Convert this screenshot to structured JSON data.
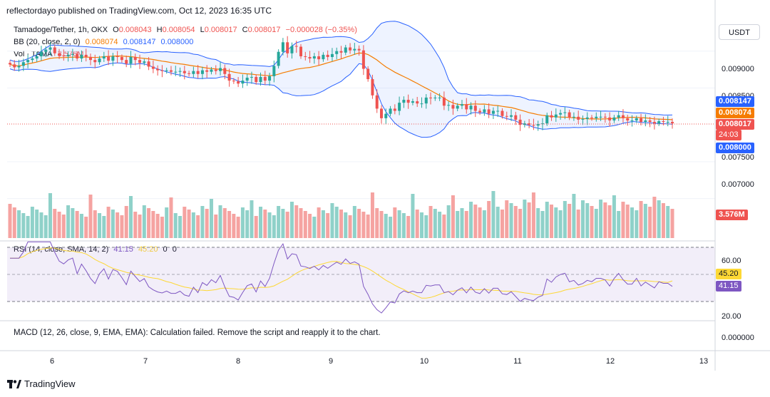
{
  "header": {
    "publisher_line": "reflectordayo published on TradingView.com, Oct 12, 2023 16:35 UTC"
  },
  "legend": {
    "symbol": "Tamadoge/Tether, 1h, OKX",
    "open_label": "O",
    "open": "0.008043",
    "high_label": "H",
    "high": "0.008054",
    "low_label": "L",
    "low": "0.008017",
    "close_label": "C",
    "close": "0.008017",
    "change": "−0.000028 (−0.35%)",
    "bb_label": "BB (20, close, 2, 0)",
    "bb_basis": "0.008074",
    "bb_upper": "0.008147",
    "bb_lower": "0.008000",
    "vol_label": "Vol · TAMA",
    "vol_value": "3.576M",
    "rsi_label": "RSI (14, close, SMA, 14, 2)",
    "rsi_value": "41.15",
    "rsi_ma": "45.20",
    "rsi_extra1": "0",
    "rsi_extra2": "0",
    "macd_msg": "MACD (12, 26, close, 9, EMA, EMA): Calculation failed. Remove the script and reapply it to the chart."
  },
  "currency_button": "USDT",
  "price_axis": {
    "ticks": [
      "0.009000",
      "0.008500",
      "0.007500",
      "0.007000"
    ],
    "tag_upper": "0.008147",
    "tag_basis": "0.008074",
    "tag_close": "0.008017",
    "tag_countdown": "24:03",
    "tag_lower": "0.008000",
    "vol_tag": "3.576M"
  },
  "rsi_axis": {
    "ticks": [
      "60.00",
      "20.00"
    ],
    "tag_ma": "45.20",
    "tag_rsi": "41.15"
  },
  "macd_axis": {
    "ticks": [
      "0.000000"
    ]
  },
  "time_axis": {
    "ticks": [
      "6",
      "7",
      "8",
      "9",
      "10",
      "11",
      "12",
      "13"
    ]
  },
  "colors": {
    "up": "#26a69a",
    "down": "#ef5350",
    "bb_band": "#2962ff",
    "bb_basis": "#f57c00",
    "rsi": "#7e57c2",
    "rsi_ma": "#fdd835",
    "vol_up": "#8fd1c9",
    "vol_down": "#f5a3a1"
  },
  "footer": {
    "brand": "TradingView"
  },
  "chart_data": [
    {
      "type": "candlestick",
      "title": "Tamadoge/Tether, 1h, OKX",
      "ylim": [
        0.0066,
        0.0095
      ],
      "x_ticks": [
        "6",
        "7",
        "8",
        "9",
        "10",
        "11",
        "12",
        "13"
      ],
      "closes": [
        0.00882,
        0.00878,
        0.0088,
        0.00885,
        0.00888,
        0.0089,
        0.00893,
        0.00899,
        0.00902,
        0.00905,
        0.00897,
        0.00894,
        0.00893,
        0.00895,
        0.00896,
        0.0089,
        0.00895,
        0.00892,
        0.00888,
        0.00885,
        0.0089,
        0.00893,
        0.00887,
        0.00893,
        0.00892,
        0.00888,
        0.00883,
        0.00892,
        0.00888,
        0.00884,
        0.00886,
        0.00879,
        0.00876,
        0.00874,
        0.00873,
        0.00874,
        0.00872,
        0.00872,
        0.00873,
        0.0087,
        0.00869,
        0.00873,
        0.00869,
        0.00874,
        0.00872,
        0.00875,
        0.00873,
        0.00877,
        0.00869,
        0.0086,
        0.00859,
        0.00856,
        0.0086,
        0.00864,
        0.00865,
        0.00858,
        0.00865,
        0.0086,
        0.00866,
        0.0088,
        0.00899,
        0.00912,
        0.00897,
        0.00907,
        0.00906,
        0.00893,
        0.00892,
        0.0089,
        0.00893,
        0.00889,
        0.00895,
        0.00892,
        0.00896,
        0.009,
        0.00898,
        0.00905,
        0.00901,
        0.00903,
        0.00901,
        0.00876,
        0.00862,
        0.0084,
        0.00822,
        0.00809,
        0.00815,
        0.00822,
        0.00819,
        0.0083,
        0.00834,
        0.0083,
        0.00832,
        0.00829,
        0.00829,
        0.00837,
        0.00836,
        0.00837,
        0.00837,
        0.00826,
        0.00827,
        0.00822,
        0.00826,
        0.00828,
        0.00821,
        0.00826,
        0.00819,
        0.00817,
        0.00821,
        0.00815,
        0.00819,
        0.00819,
        0.00812,
        0.00811,
        0.00813,
        0.00807,
        0.008,
        0.00802,
        0.008,
        0.00799,
        0.00801,
        0.00802,
        0.00813,
        0.0081,
        0.00814,
        0.00816,
        0.00817,
        0.0081,
        0.00811,
        0.00807,
        0.00808,
        0.0081,
        0.00809,
        0.00811,
        0.00811,
        0.0081,
        0.00806,
        0.0081,
        0.00813,
        0.00809,
        0.00806,
        0.00806,
        0.00809,
        0.00804,
        0.00806,
        0.00804,
        0.00802,
        0.00805,
        0.00804,
        0.00804,
        0.00802
      ],
      "bb_upper_start": 0.00904,
      "bb_upper_end": 0.008147,
      "bb_basis_end": 0.008074,
      "bb_lower_end": 0.008
    },
    {
      "type": "bar",
      "title": "Vol · TAMA",
      "last_value": "3.576M"
    },
    {
      "type": "line",
      "title": "RSI (14, close, SMA, 14, 2)",
      "ylim": [
        15,
        75
      ],
      "bands": [
        70,
        50,
        30
      ],
      "last_rsi": 41.15,
      "last_ma": 45.2
    }
  ]
}
